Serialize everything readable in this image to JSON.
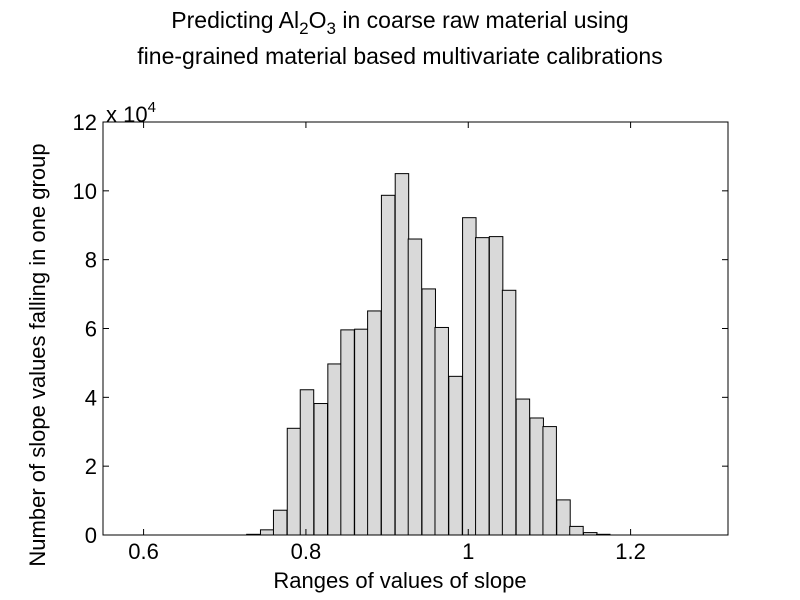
{
  "chart_data": {
    "type": "bar",
    "title_line1": {
      "segments": [
        {
          "text": "Predicting Al"
        },
        {
          "text": "2",
          "sub": true
        },
        {
          "text": "O"
        },
        {
          "text": "3",
          "sub": true
        },
        {
          "text": " in coarse raw material using"
        }
      ]
    },
    "title_line2": "fine-grained material based multivariate calibrations",
    "xlabel": "Ranges of values of slope",
    "ylabel": "Number of slope values falling in one group",
    "y_multiplier_base": "x 10",
    "y_multiplier_exp": "4",
    "xlim": [
      0.55,
      1.32
    ],
    "ylim": [
      0,
      12
    ],
    "xticks": [
      0.6,
      0.8,
      1.0,
      1.2
    ],
    "xtick_labels": [
      "0.6",
      "0.8",
      "1",
      "1.2"
    ],
    "yticks": [
      0,
      2,
      4,
      6,
      8,
      10,
      12
    ],
    "ytick_labels": [
      "0",
      "2",
      "4",
      "6",
      "8",
      "10",
      "12"
    ],
    "bin_width": 0.0166,
    "bar_color": "#d9d9d9",
    "bar_edge_color": "#000000",
    "grid": false,
    "bins": [
      {
        "x": 0.727,
        "y": 0.02
      },
      {
        "x": 0.744,
        "y": 0.15
      },
      {
        "x": 0.76,
        "y": 0.72
      },
      {
        "x": 0.777,
        "y": 3.1
      },
      {
        "x": 0.793,
        "y": 4.22
      },
      {
        "x": 0.81,
        "y": 3.82
      },
      {
        "x": 0.827,
        "y": 4.97
      },
      {
        "x": 0.843,
        "y": 5.96
      },
      {
        "x": 0.86,
        "y": 5.98
      },
      {
        "x": 0.876,
        "y": 6.51
      },
      {
        "x": 0.893,
        "y": 9.87
      },
      {
        "x": 0.91,
        "y": 10.5
      },
      {
        "x": 0.926,
        "y": 8.6
      },
      {
        "x": 0.943,
        "y": 7.15
      },
      {
        "x": 0.959,
        "y": 6.03
      },
      {
        "x": 0.976,
        "y": 4.61
      },
      {
        "x": 0.993,
        "y": 9.22
      },
      {
        "x": 1.009,
        "y": 8.64
      },
      {
        "x": 1.026,
        "y": 8.67
      },
      {
        "x": 1.042,
        "y": 7.11
      },
      {
        "x": 1.059,
        "y": 3.95
      },
      {
        "x": 1.076,
        "y": 3.4
      },
      {
        "x": 1.092,
        "y": 3.15
      },
      {
        "x": 1.109,
        "y": 1.02
      },
      {
        "x": 1.125,
        "y": 0.25
      },
      {
        "x": 1.142,
        "y": 0.07
      },
      {
        "x": 1.158,
        "y": 0.02
      }
    ]
  }
}
